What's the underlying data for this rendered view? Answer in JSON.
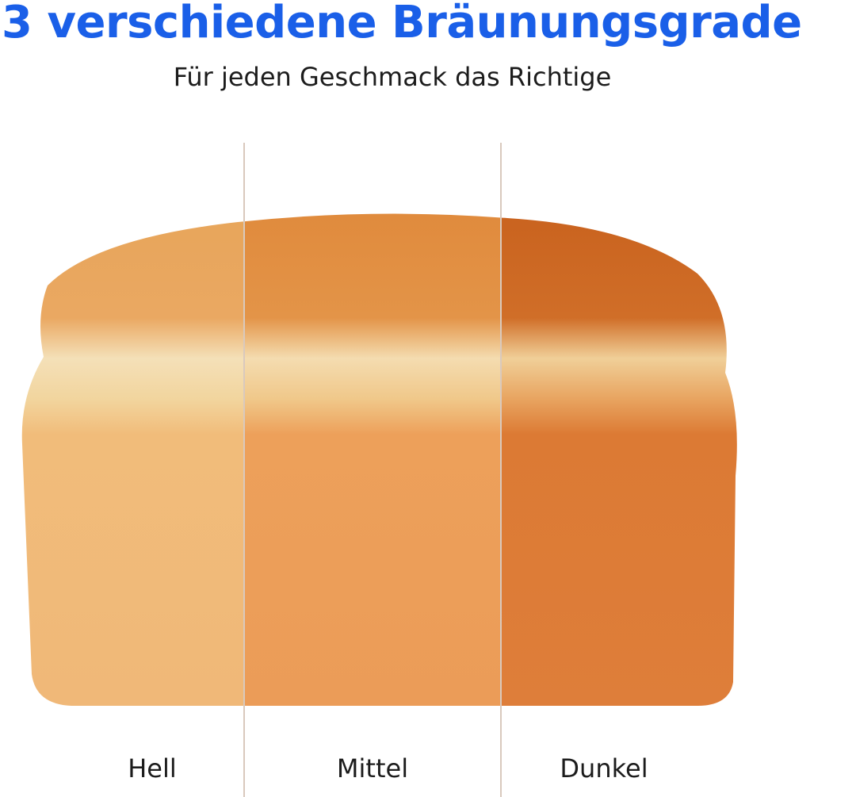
{
  "header": {
    "title": "3 verschiedene Bräunungsgrade",
    "subtitle": "Für jeden Geschmack das Richtige"
  },
  "sections": [
    {
      "label": "Hell"
    },
    {
      "label": "Mittel"
    },
    {
      "label": "Dunkel"
    }
  ]
}
